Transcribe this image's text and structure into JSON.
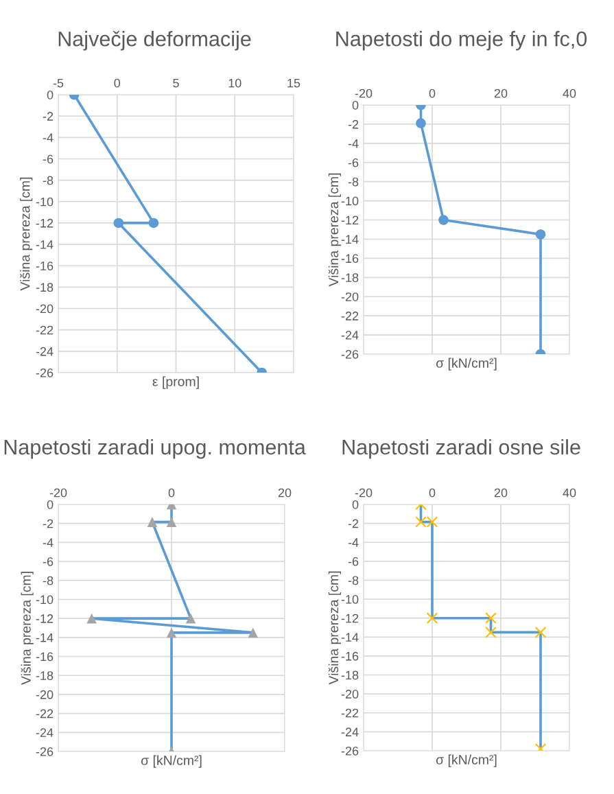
{
  "chart_data": [
    {
      "type": "line",
      "title": "Največje deformacije",
      "xlabel": "ε [prom]",
      "ylabel": "Višina prereza [cm]",
      "xlim": [
        -5,
        15
      ],
      "xticks": [
        -5,
        0,
        5,
        10,
        15
      ],
      "ylim": [
        -26,
        0
      ],
      "yticks": [
        -26,
        -24,
        -22,
        -20,
        -18,
        -16,
        -14,
        -12,
        -10,
        -8,
        -6,
        -4,
        -2,
        0
      ],
      "grid": true,
      "marker": "circle",
      "series": [
        {
          "color": "#5b9bd5",
          "x": [
            -3.65,
            3.1,
            0.12,
            12.3
          ],
          "values": [
            0,
            -12,
            -12,
            -26
          ]
        }
      ]
    },
    {
      "type": "line",
      "title": "Napetosti do meje fy in fc,0",
      "xlabel": "σ [kN/cm²]",
      "ylabel": "Višina prereza [cm]",
      "xlim": [
        -20,
        40
      ],
      "xticks": [
        -20,
        0,
        20,
        40
      ],
      "ylim": [
        -26,
        0
      ],
      "yticks": [
        -26,
        -24,
        -22,
        -20,
        -18,
        -16,
        -14,
        -12,
        -10,
        -8,
        -6,
        -4,
        -2,
        0
      ],
      "grid": true,
      "marker": "circle",
      "series": [
        {
          "color": "#5b9bd5",
          "x": [
            -3.3,
            -3.3,
            3.3,
            31.6,
            31.6
          ],
          "values": [
            0,
            -1.9,
            -12,
            -13.5,
            -26
          ]
        }
      ]
    },
    {
      "type": "line",
      "title": "Napetosti zaradi upog. momenta",
      "xlabel": "σ [kN/cm²]",
      "ylabel": "Višina prereza [cm]",
      "xlim": [
        -20,
        20
      ],
      "xticks": [
        -20,
        0,
        20
      ],
      "ylim": [
        -26,
        0
      ],
      "yticks": [
        -26,
        -24,
        -22,
        -20,
        -18,
        -16,
        -14,
        -12,
        -10,
        -8,
        -6,
        -4,
        -2,
        0
      ],
      "grid": true,
      "marker": "triangle",
      "series": [
        {
          "color": "#5b9bd5",
          "colors": [
            "#a5a5a5",
            "#a5a5a5",
            "#a5a5a5",
            "#a5a5a5",
            "#a5a5a5",
            "#a5a5a5",
            "#a5a5a5",
            "#a5a5a5"
          ],
          "x": [
            0,
            0,
            -3.4,
            3.4,
            -14.1,
            14.4,
            0,
            0
          ],
          "values": [
            0,
            -1.85,
            -1.85,
            -12,
            -12,
            -13.5,
            -13.5,
            -26
          ]
        }
      ]
    },
    {
      "type": "line",
      "title": "Napetosti zaradi osne sile",
      "xlabel": "σ [kN/cm²]",
      "ylabel": "Višina prereza [cm]",
      "xlim": [
        -20,
        40
      ],
      "xticks": [
        -20,
        0,
        20,
        40
      ],
      "ylim": [
        -26,
        0
      ],
      "yticks": [
        -26,
        -24,
        -22,
        -20,
        -18,
        -16,
        -14,
        -12,
        -10,
        -8,
        -6,
        -4,
        -2,
        0
      ],
      "grid": true,
      "marker": "cross",
      "series": [
        {
          "color": "#5b9bd5",
          "colors": [
            "#ffc000",
            "#ffc000",
            "#ffc000",
            "#ffc000",
            "#ffc000",
            "#ffc000",
            "#ffc000",
            "#ffc000"
          ],
          "x": [
            -3.3,
            -3.3,
            0,
            0,
            17.1,
            17.1,
            31.6,
            31.6
          ],
          "values": [
            0,
            -1.85,
            -1.85,
            -12,
            -12,
            -13.5,
            -13.5,
            -25.8
          ]
        }
      ]
    }
  ]
}
